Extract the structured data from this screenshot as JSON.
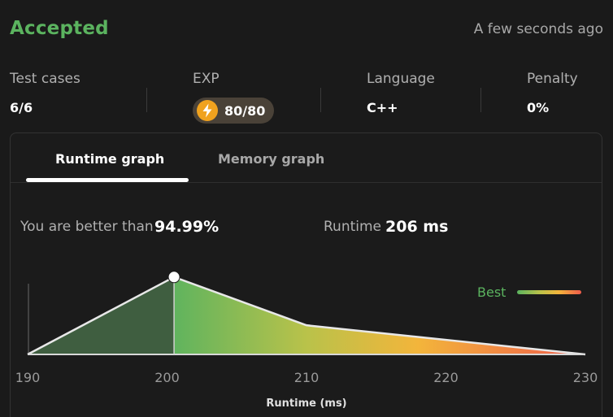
{
  "result": {
    "status": "Accepted",
    "timestamp": "A few seconds ago"
  },
  "stats": {
    "test_cases": {
      "label": "Test cases",
      "value": "6/6"
    },
    "exp": {
      "label": "EXP",
      "value": "80/80",
      "icon": "lightning-bolt-icon"
    },
    "language": {
      "label": "Language",
      "value": "C++"
    },
    "penalty": {
      "label": "Penalty",
      "value": "0%"
    }
  },
  "tabs": [
    {
      "label": "Runtime graph",
      "active": true
    },
    {
      "label": "Memory graph",
      "active": false
    }
  ],
  "summary": {
    "better_than_label": "You are better than",
    "better_than_value": "94.99%",
    "runtime_label": "Runtime",
    "runtime_value": "206 ms"
  },
  "legend": {
    "label": "Best"
  },
  "colors": {
    "accepted_green": "#5bb35f",
    "gradient": [
      "#5bb35f",
      "#b9c24a",
      "#f3b53b",
      "#ef5b4a"
    ],
    "highlight_fill": "#3f5e40"
  },
  "chart_data": {
    "type": "area",
    "xlabel": "Runtime (ms)",
    "ylabel": "",
    "xlim": [
      190,
      230
    ],
    "x_ticks": [
      190,
      200,
      210,
      220,
      230
    ],
    "x": [
      190,
      200.5,
      210,
      230
    ],
    "y": [
      0,
      0.85,
      0.32,
      0
    ],
    "highlight_marker_x": 200.5,
    "highlight_range": [
      190,
      200.5
    ]
  }
}
